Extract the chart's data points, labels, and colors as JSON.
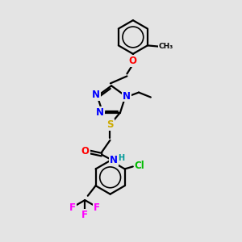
{
  "bg_color": "#e4e4e4",
  "atom_colors": {
    "N": "#0000ff",
    "O": "#ff0000",
    "S": "#ccaa00",
    "F": "#ff00ff",
    "Cl": "#00bb00",
    "H": "#009999",
    "C": "#000000"
  },
  "bond_color": "#000000",
  "bond_width": 1.6,
  "font_size_atom": 8.5,
  "font_size_small": 7.0
}
